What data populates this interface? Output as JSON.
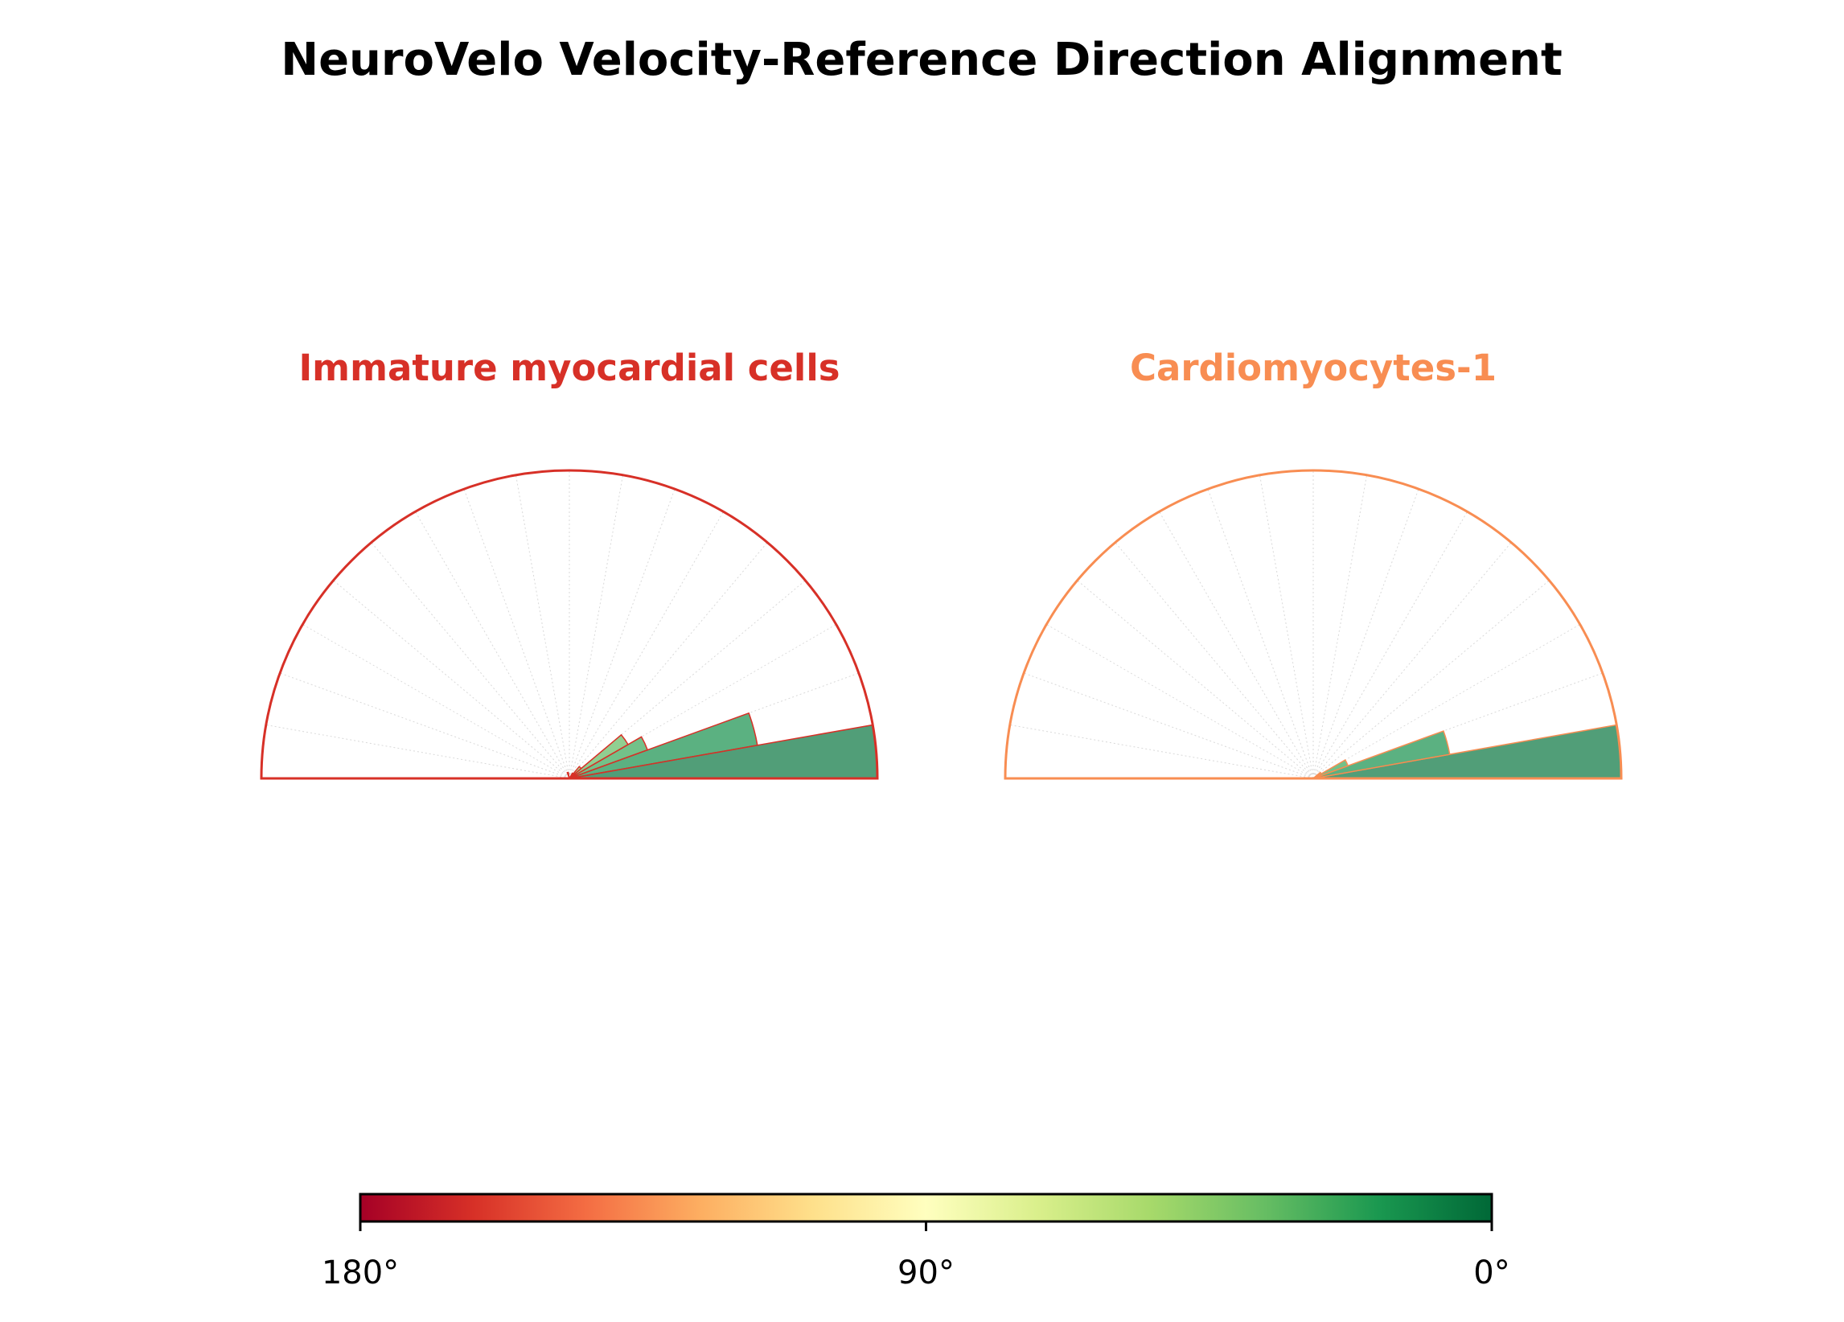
{
  "title": "NeuroVelo Velocity-Reference Direction Alignment",
  "chart_data": [
    {
      "type": "polar-histogram",
      "name": "Immature myocardial cells",
      "title": "Immature myocardial cells",
      "title_color": "#d73027",
      "edge_color": "#d73027",
      "theta_range_deg": [
        0,
        180
      ],
      "bin_width_deg": 10,
      "bins": [
        {
          "angle_start": 0,
          "angle_end": 10,
          "value": 1.0
        },
        {
          "angle_start": 10,
          "angle_end": 20,
          "value": 0.62
        },
        {
          "angle_start": 20,
          "angle_end": 30,
          "value": 0.27
        },
        {
          "angle_start": 30,
          "angle_end": 40,
          "value": 0.22
        },
        {
          "angle_start": 40,
          "angle_end": 50,
          "value": 0.05
        },
        {
          "angle_start": 50,
          "angle_end": 60,
          "value": 0.02
        },
        {
          "angle_start": 100,
          "angle_end": 110,
          "value": 0.02
        }
      ]
    },
    {
      "type": "polar-histogram",
      "name": "Cardiomyocytes-1",
      "title": "Cardiomyocytes-1",
      "title_color": "#f88d52",
      "edge_color": "#f88d52",
      "theta_range_deg": [
        0,
        180
      ],
      "bin_width_deg": 10,
      "bins": [
        {
          "angle_start": 0,
          "angle_end": 10,
          "value": 1.0
        },
        {
          "angle_start": 10,
          "angle_end": 20,
          "value": 0.45
        },
        {
          "angle_start": 20,
          "angle_end": 30,
          "value": 0.12
        },
        {
          "angle_start": 30,
          "angle_end": 40,
          "value": 0.03
        }
      ]
    }
  ],
  "colorbar": {
    "colormap": "RdYlGn",
    "range_deg": [
      180,
      0
    ],
    "tick_labels": [
      "180°",
      "90°",
      "0°"
    ],
    "stops": [
      "#a50026",
      "#d73027",
      "#f46d43",
      "#fdae61",
      "#fee08b",
      "#ffffbf",
      "#d9ef8b",
      "#a6d96a",
      "#66bd63",
      "#1a9850",
      "#006837"
    ]
  }
}
